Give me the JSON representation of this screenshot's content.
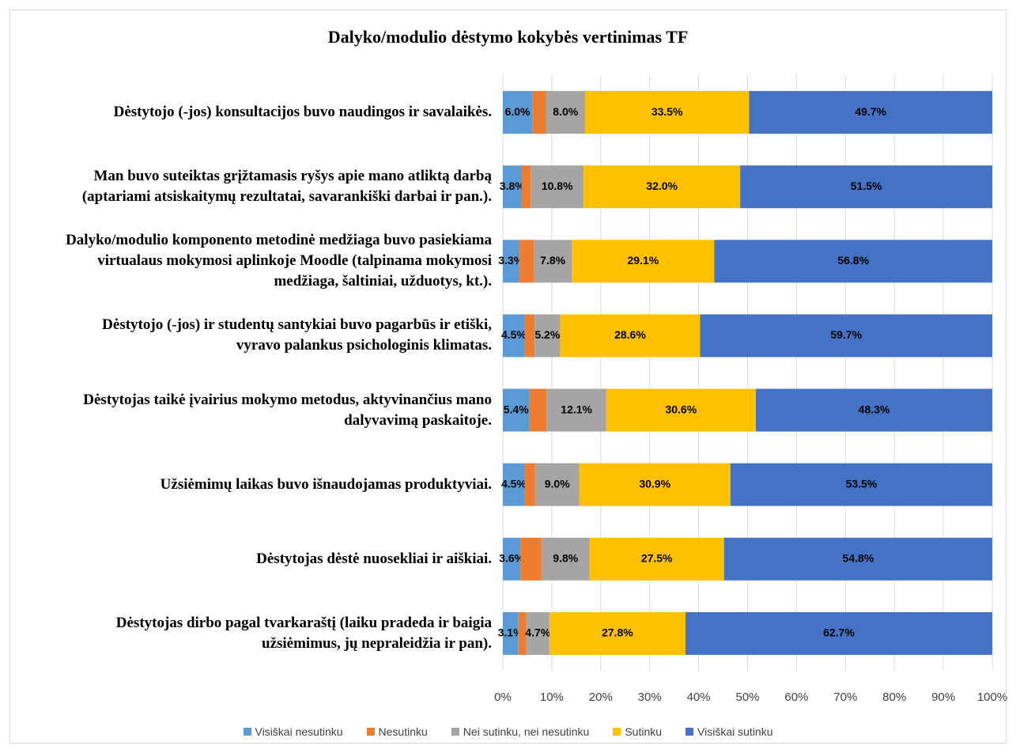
{
  "chart_data": {
    "type": "stacked-barh",
    "title": "Dalyko/modulio  dėstymo kokybės vertinimas TF",
    "categories": [
      "Dėstytojo (-jos) konsultacijos buvo naudingos ir savalaikės.",
      "Man buvo suteiktas grįžtamasis ryšys apie mano atliktą darbą\n(aptariami atsiskaitymų rezultatai, savarankiški darbai ir pan.).",
      "Dalyko/modulio komponento metodinė medžiaga buvo pasiekiama\nvirtualaus mokymosi aplinkoje Moodle (talpinama mokymosi\nmedžiaga, šaltiniai, užduotys, kt.).",
      "Dėstytojo (-jos) ir studentų santykiai buvo pagarbūs ir etiški,\nvyravo palankus psichologinis klimatas.",
      "Dėstytojas taikė įvairius mokymo metodus, aktyvinančius mano\ndalyvavimą paskaitoje.",
      "Užsiėmimų laikas buvo išnaudojamas produktyviai.",
      "Dėstytojas dėstė nuosekliai ir aiškiai.",
      "Dėstytojas dirbo pagal tvarkaraštį (laiku pradeda ir baigia\nužsiėmimus, jų nepraleidžia ir pan)."
    ],
    "series": [
      {
        "name": "Visiškai nesutinku",
        "color": "#5b9bd5",
        "values": [
          6.0,
          3.8,
          3.3,
          4.5,
          5.4,
          4.5,
          3.6,
          3.1
        ],
        "value_labels": [
          "6.0%",
          "3.8%",
          "3.3%",
          "4.5%",
          "5.4%",
          "4.5%",
          "3.6%",
          "3.1%"
        ]
      },
      {
        "name": "Nesutinku",
        "color": "#ed7d31",
        "values": [
          2.8,
          1.9,
          3.0,
          2.0,
          3.6,
          2.1,
          4.3,
          1.7
        ],
        "value_labels": [
          null,
          null,
          null,
          null,
          null,
          null,
          null,
          null
        ]
      },
      {
        "name": "Nei sutinku, nei nesutinku",
        "color": "#a5a5a5",
        "values": [
          8.0,
          10.8,
          7.8,
          5.2,
          12.1,
          9.0,
          9.8,
          4.7
        ],
        "value_labels": [
          "8.0%",
          "10.8%",
          "7.8%",
          "5.2%",
          "12.1%",
          "9.0%",
          "9.8%",
          "4.7%"
        ]
      },
      {
        "name": "Sutinku",
        "color": "#ffc000",
        "values": [
          33.5,
          32.0,
          29.1,
          28.6,
          30.6,
          30.9,
          27.5,
          27.8
        ],
        "value_labels": [
          "33.5%",
          "32.0%",
          "29.1%",
          "28.6%",
          "30.6%",
          "30.9%",
          "27.5%",
          "27.8%"
        ]
      },
      {
        "name": "Visiškai sutinku",
        "color": "#4472c4",
        "values": [
          49.7,
          51.5,
          56.8,
          59.7,
          48.3,
          53.5,
          54.8,
          62.7
        ],
        "value_labels": [
          "49.7%",
          "51.5%",
          "56.8%",
          "59.7%",
          "48.3%",
          "53.5%",
          "54.8%",
          "62.7%"
        ]
      }
    ],
    "xlim": [
      0,
      100
    ],
    "xticks": [
      {
        "value": 0,
        "label": "0%"
      },
      {
        "value": 10,
        "label": "10%"
      },
      {
        "value": 20,
        "label": "20%"
      },
      {
        "value": 30,
        "label": "30%"
      },
      {
        "value": 40,
        "label": "40%"
      },
      {
        "value": 50,
        "label": "50%"
      },
      {
        "value": 60,
        "label": "60%"
      },
      {
        "value": 70,
        "label": "70%"
      },
      {
        "value": 80,
        "label": "80%"
      },
      {
        "value": 90,
        "label": "90%"
      },
      {
        "value": 100,
        "label": "100%"
      }
    ],
    "grid": true,
    "legend": "bottom"
  }
}
